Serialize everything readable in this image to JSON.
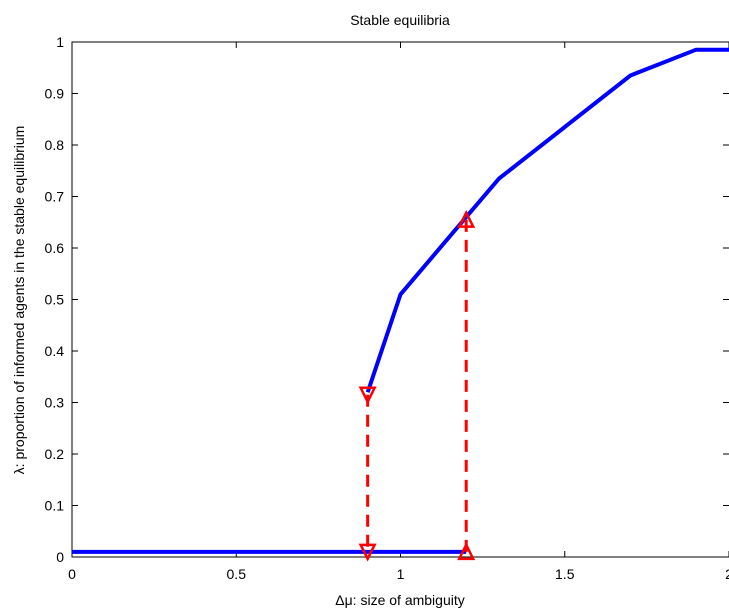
{
  "chart_data": {
    "type": "line",
    "title": "Stable equilibria",
    "xlabel": "Δμ: size of ambiguity",
    "ylabel": "λ: proportion of informed agents in the stable equilibrium",
    "xlim": [
      0,
      2
    ],
    "ylim": [
      0,
      1
    ],
    "xticks": [
      "0",
      "0.5",
      "1",
      "1.5",
      "2"
    ],
    "yticks": [
      "0",
      "0.1",
      "0.2",
      "0.3",
      "0.4",
      "0.5",
      "0.6",
      "0.7",
      "0.8",
      "0.9",
      "1"
    ],
    "grid": false,
    "series": [
      {
        "color": "#0000ff",
        "style": "solid",
        "segments": [
          {
            "x": [
              0,
              1.2
            ],
            "y": [
              0.01,
              0.01
            ]
          },
          {
            "x": [
              0.9,
              1.0,
              1.2,
              1.3,
              1.5,
              1.7,
              1.9,
              2.0
            ],
            "y": [
              0.32,
              0.51,
              0.66,
              0.735,
              0.835,
              0.935,
              0.985,
              0.985
            ]
          }
        ]
      },
      {
        "color": "#ff0000",
        "style": "dashed",
        "arrows": [
          {
            "x": 0.9,
            "from": 0.315,
            "to": 0.01,
            "direction": "down"
          },
          {
            "x": 1.2,
            "from": 0.01,
            "to": 0.655,
            "direction": "up"
          }
        ]
      }
    ]
  }
}
